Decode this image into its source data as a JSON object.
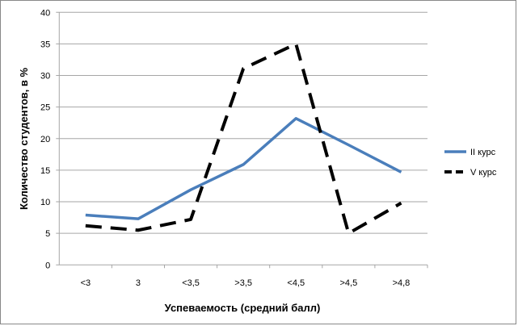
{
  "chart_data": {
    "type": "line",
    "title": "",
    "xlabel": "Успеваемость (средний балл)",
    "ylabel": "Количество студентов, в %",
    "categories": [
      "<3",
      "3",
      "<3,5",
      ">3,5",
      "<4,5",
      ">4,5",
      ">4,8"
    ],
    "ylim": [
      0,
      40
    ],
    "yticks": [
      0,
      5,
      10,
      15,
      20,
      25,
      30,
      35,
      40
    ],
    "grid": true,
    "legend_position": "right",
    "series": [
      {
        "name": "II курс",
        "values": [
          7.9,
          7.3,
          11.9,
          15.9,
          23.2,
          19.0,
          14.7
        ],
        "color": "#4a7ebb",
        "style": "solid"
      },
      {
        "name": "V  курс",
        "values": [
          6.2,
          5.5,
          7.2,
          31.1,
          35.0,
          5.0,
          9.8
        ],
        "color": "#000000",
        "style": "dashed"
      }
    ]
  }
}
